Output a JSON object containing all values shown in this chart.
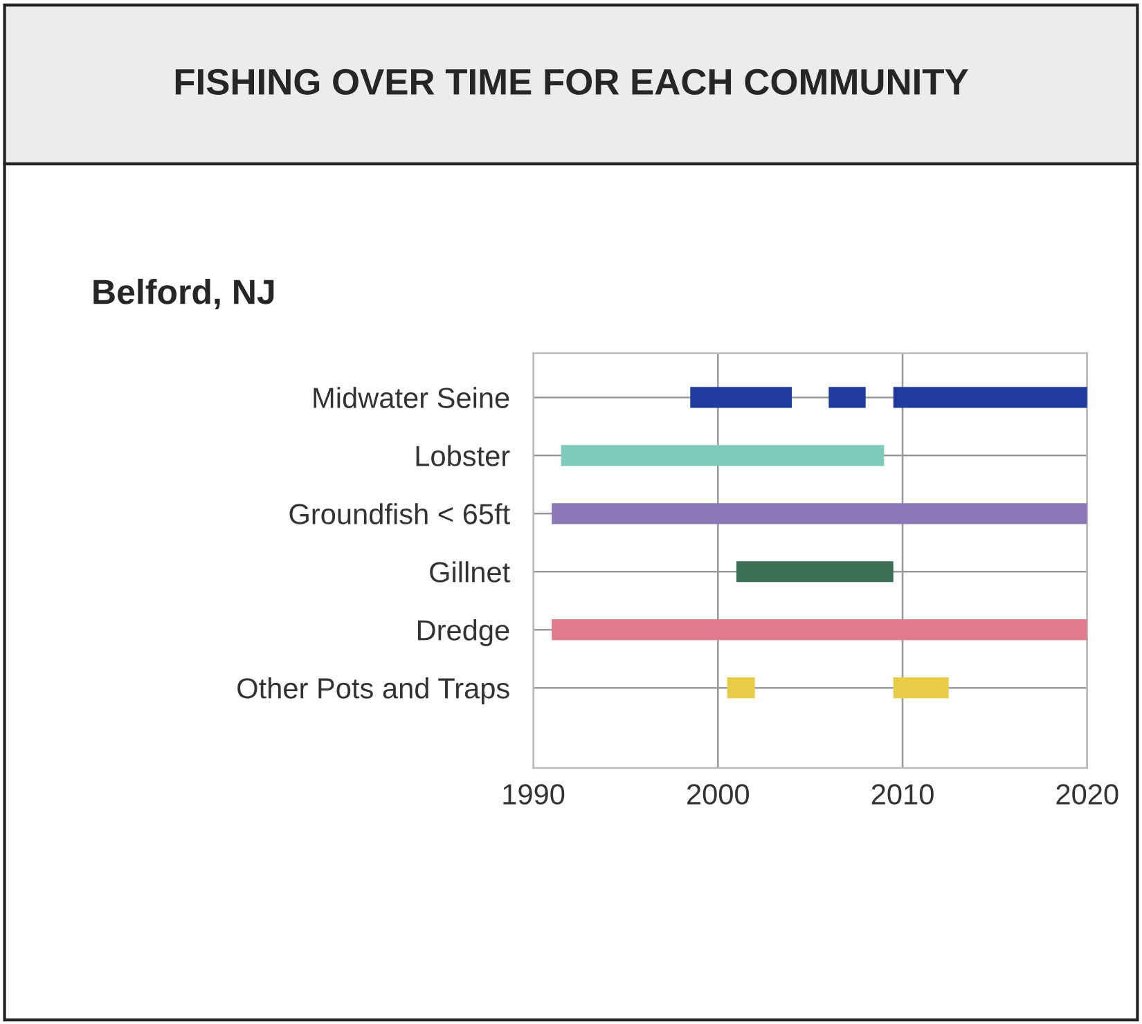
{
  "chart_data": {
    "type": "bar",
    "orientation": "horizontal",
    "title": "FISHING OVER TIME FOR EACH COMMUNITY",
    "subtitle": "Belford, NJ",
    "categories": [
      "Midwater Seine",
      "Lobster",
      "Groundfish < 65ft",
      "Gillnet",
      "Dredge",
      "Other Pots and Traps"
    ],
    "series": [
      {
        "base": [
          1998.5,
          1991.5,
          1991,
          2001,
          1991,
          2000.5
        ],
        "values": [
          5.5,
          17.5,
          29,
          8.5,
          29,
          1.5
        ],
        "colors": [
          "#1f3b9e",
          "#7fcbbb",
          "#8a78b8",
          "#3a6e55",
          "#e07b8c",
          "#e8cc4a"
        ]
      },
      {
        "base": [
          2006,
          null,
          null,
          null,
          null,
          2009.5
        ],
        "values": [
          2,
          null,
          null,
          null,
          null,
          3
        ],
        "colors": [
          "#1f3b9e",
          null,
          null,
          null,
          null,
          "#e8cc4a"
        ]
      },
      {
        "base": [
          2009.5,
          null,
          null,
          null,
          null,
          null
        ],
        "values": [
          10.5,
          null,
          null,
          null,
          null,
          null
        ],
        "colors": [
          "#1f3b9e",
          null,
          null,
          null,
          null,
          null
        ]
      }
    ],
    "xlim": [
      1990,
      2020
    ],
    "xticks": [
      1990,
      2000,
      2010,
      2020
    ],
    "grid": true
  }
}
